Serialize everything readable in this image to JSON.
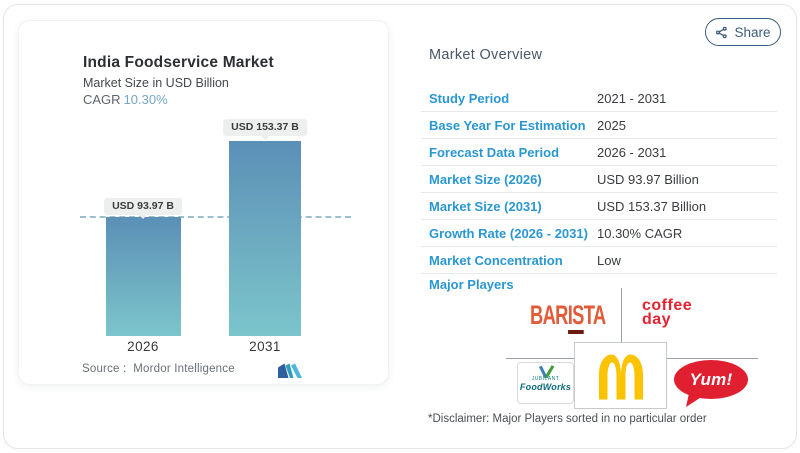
{
  "page": {
    "share": {
      "label": "Share"
    }
  },
  "chart_card": {
    "title": "India Foodservice Market",
    "subtitle": "Market Size in USD Billion",
    "cagr_label": "CAGR",
    "cagr_value": "10.30%",
    "source": "Source :  Mordor Intelligence",
    "bar_labels": [
      "USD 93.97 B",
      "USD 153.37 B"
    ],
    "years": [
      "2026",
      "2031"
    ]
  },
  "chart_data": {
    "type": "bar",
    "title": "India Foodservice Market",
    "subtitle": "Market Size in USD Billion",
    "categories": [
      "2026",
      "2031"
    ],
    "values": [
      93.97,
      153.37
    ],
    "unit": "USD Billion",
    "data_labels": [
      "USD 93.97 B",
      "USD 153.37 B"
    ],
    "cagr": "10.30%",
    "reference_line": {
      "style": "dashed",
      "at_value": 93.97
    },
    "ylim": [
      0,
      160
    ],
    "grid": false,
    "legend": false,
    "source": "Mordor Intelligence",
    "bar_gradient": [
      "#5b8fb7",
      "#7cc5cc"
    ]
  },
  "overview": {
    "title": "Market Overview",
    "rows": [
      {
        "label": "Study Period",
        "value": "2021 - 2031"
      },
      {
        "label": "Base Year For Estimation",
        "value": "2025"
      },
      {
        "label": "Forecast Data Period",
        "value": "2026 - 2031"
      },
      {
        "label": "Market Size (2026)",
        "value": "USD 93.97 Billion"
      },
      {
        "label": "Market Size (2031)",
        "value": "USD 153.37 Billion"
      },
      {
        "label": "Growth Rate (2026 - 2031)",
        "value": "10.30% CAGR"
      },
      {
        "label": "Market Concentration",
        "value": "Low"
      }
    ],
    "major_players_label": "Major Players",
    "players": [
      "Barista",
      "Coffee Day",
      "Jubilant FoodWorks",
      "McDonald's",
      "Yum!"
    ],
    "disclaimer": "*Disclaimer: Major Players sorted in no particular order"
  },
  "players": {
    "barista": {
      "pre": "BAR",
      "mid": "IS",
      "post": "TA"
    },
    "coffee_day": {
      "line1": "coffee",
      "line2": "day"
    },
    "foodworks": {
      "top": "JUBILANT",
      "name": "FoodWorks"
    },
    "yum": {
      "text": "Yum!"
    }
  },
  "colors": {
    "label_blue": "#2a97d3",
    "bar_top": "#5b8fb7",
    "bar_bottom": "#7cc5cc",
    "dashed_line": "#9cc0d0",
    "share_outline": "#3c5d7c",
    "barista_orange": "#e35a39",
    "coffee_red": "#e52330",
    "yum_red": "#e01f30",
    "mcd_gold": "#fcc300"
  }
}
